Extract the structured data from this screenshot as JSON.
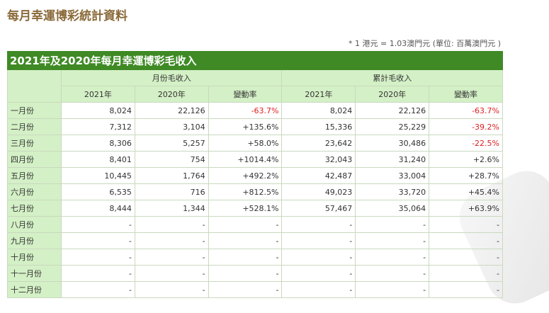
{
  "page_title": "每月幸運博彩統計資料",
  "note": "* 1 港元 = 1.03澳門元 (單位: 百萬澳門元 )",
  "table": {
    "caption": "2021年及2020年每月幸運博彩毛收入",
    "group_monthly": "月份毛收入",
    "group_cumulative": "累計毛收入",
    "col_2021": "2021年",
    "col_2020": "2020年",
    "col_change": "變動率",
    "rows": [
      [
        "一月份",
        "8,024",
        "22,126",
        "-63.7%",
        "8,024",
        "22,126",
        "-63.7%"
      ],
      [
        "二月份",
        "7,312",
        "3,104",
        "+135.6%",
        "15,336",
        "25,229",
        "-39.2%"
      ],
      [
        "三月份",
        "8,306",
        "5,257",
        "+58.0%",
        "23,642",
        "30,486",
        "-22.5%"
      ],
      [
        "四月份",
        "8,401",
        "754",
        "+1014.4%",
        "32,043",
        "31,240",
        "+2.6%"
      ],
      [
        "五月份",
        "10,445",
        "1,764",
        "+492.2%",
        "42,487",
        "33,004",
        "+28.7%"
      ],
      [
        "六月份",
        "6,535",
        "716",
        "+812.5%",
        "49,023",
        "33,720",
        "+45.4%"
      ],
      [
        "七月份",
        "8,444",
        "1,344",
        "+528.1%",
        "57,467",
        "35,064",
        "+63.9%"
      ],
      [
        "八月份",
        "-",
        "-",
        "-",
        "-",
        "-",
        "-"
      ],
      [
        "九月份",
        "-",
        "-",
        "-",
        "-",
        "-",
        "-"
      ],
      [
        "十月份",
        "-",
        "-",
        "-",
        "-",
        "-",
        "-"
      ],
      [
        "十一月份",
        "-",
        "-",
        "-",
        "-",
        "-",
        "-"
      ],
      [
        "十二月份",
        "-",
        "-",
        "-",
        "-",
        "-",
        "-"
      ]
    ]
  },
  "colors": {
    "header_green": "#3f8a25",
    "light_green": "#d4f0c6",
    "negative": "#dd2222",
    "title": "#8a6a3a"
  }
}
